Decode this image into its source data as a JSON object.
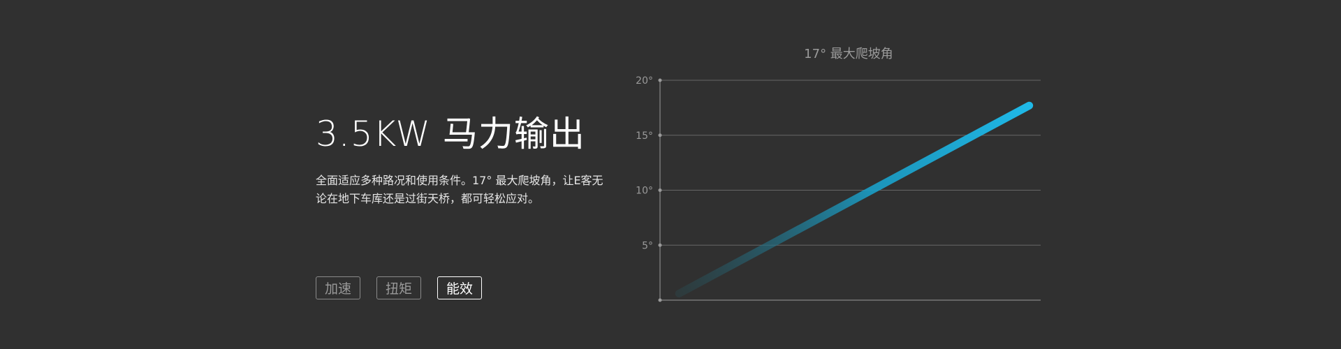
{
  "feature": {
    "headline": "3.5KW 马力输出",
    "description": "全面适应多种路况和使用条件。17° 最大爬坡角，让E客无论在地下车库还是过街天桥，都可轻松应对。"
  },
  "tabs": [
    {
      "label": "加速",
      "active": false
    },
    {
      "label": "扭矩",
      "active": false
    },
    {
      "label": "能效",
      "active": true
    }
  ],
  "chart_data": {
    "type": "line",
    "title": "17°  最大爬坡角",
    "ylim": [
      0,
      20
    ],
    "yticks": [
      "5°",
      "10°",
      "15°",
      "20°"
    ],
    "ytick_values": [
      5,
      10,
      15,
      20
    ],
    "grid": true,
    "series": [
      {
        "x": [
          0.05,
          0.97
        ],
        "values": [
          0.6,
          17.7
        ]
      }
    ],
    "colors": {
      "line_end": "#1fb9e8",
      "line_start": "#2a4a4f",
      "grid": "#666666",
      "axis": "#9a9a9a",
      "label": "#9a9a9a"
    }
  }
}
